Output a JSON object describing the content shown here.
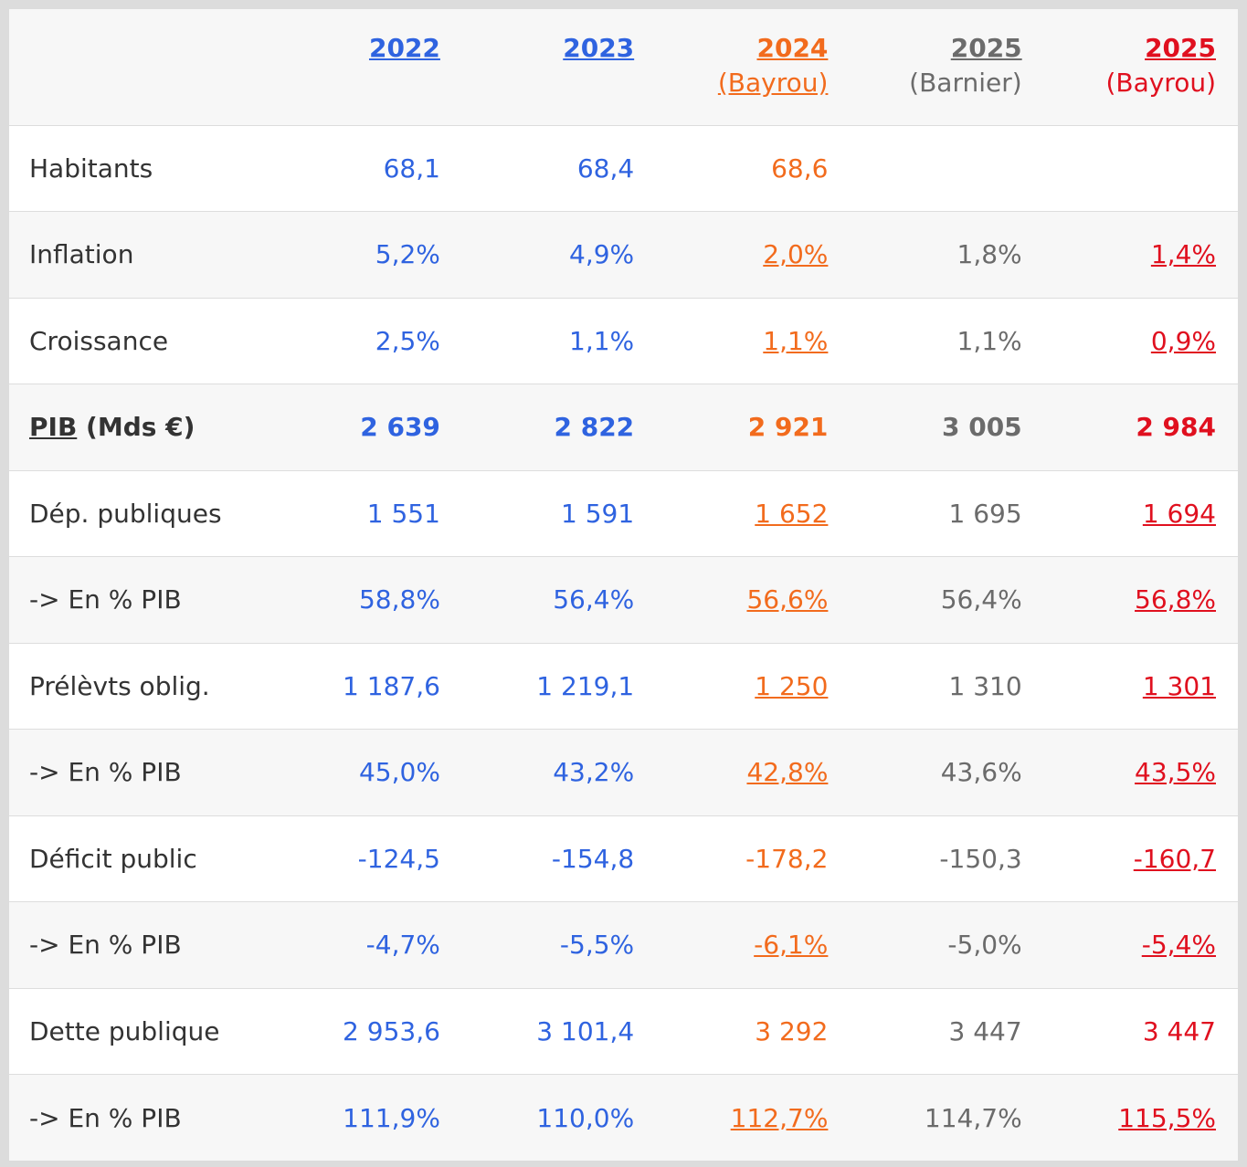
{
  "header": {
    "columns": [
      {
        "year": "2022",
        "sub": ""
      },
      {
        "year": "2023",
        "sub": ""
      },
      {
        "year": "2024",
        "sub": "(Bayrou)"
      },
      {
        "year": "2025",
        "sub": "(Barnier)"
      },
      {
        "year": "2025",
        "sub": "(Bayrou)"
      }
    ]
  },
  "colors": {
    "col_2022": "#2f63e0",
    "col_2023": "#2f63e0",
    "col_2024_bayrou": "#f26b1d",
    "col_2025_barnier": "#6b6b6b",
    "col_2025_bayrou": "#e0101f"
  },
  "rows": [
    {
      "label": "Habitants",
      "values": [
        "68,1",
        "68,4",
        "68,6",
        "",
        ""
      ]
    },
    {
      "label": "Inflation",
      "values": [
        "5,2%",
        "4,9%",
        "2,0%",
        "1,8%",
        "1,4%"
      ]
    },
    {
      "label": "Croissance",
      "values": [
        "2,5%",
        "1,1%",
        "1,1%",
        "1,1%",
        "0,9%"
      ]
    },
    {
      "label_main": "PIB",
      "label_rest": " (Mds €)",
      "values": [
        "2 639",
        "2 822",
        "2 921",
        "3 005",
        "2 984"
      ]
    },
    {
      "label": "Dép. publiques",
      "values": [
        "1 551",
        "1 591",
        "1 652",
        "1 695",
        "1 694"
      ]
    },
    {
      "label": "-> En % PIB",
      "values": [
        "58,8%",
        "56,4%",
        "56,6%",
        "56,4%",
        "56,8%"
      ]
    },
    {
      "label": "Prélèvts oblig.",
      "values": [
        "1 187,6",
        "1 219,1",
        "1 250",
        "1 310",
        "1 301"
      ]
    },
    {
      "label": "-> En % PIB",
      "values": [
        "45,0%",
        "43,2%",
        "42,8%",
        "43,6%",
        "43,5%"
      ]
    },
    {
      "label": "Déficit public",
      "values": [
        "-124,5",
        "-154,8",
        "-178,2",
        "-150,3",
        "-160,7"
      ]
    },
    {
      "label": "-> En % PIB",
      "values": [
        "-4,7%",
        "-5,5%",
        "-6,1%",
        "-5,0%",
        "-5,4%"
      ]
    },
    {
      "label": "Dette publique",
      "values": [
        "2 953,6",
        "3 101,4",
        "3 292",
        "3 447",
        "3 447"
      ]
    },
    {
      "label": "-> En % PIB",
      "values": [
        "111,9%",
        "110,0%",
        "112,7%",
        "114,7%",
        "115,5%"
      ]
    }
  ]
}
